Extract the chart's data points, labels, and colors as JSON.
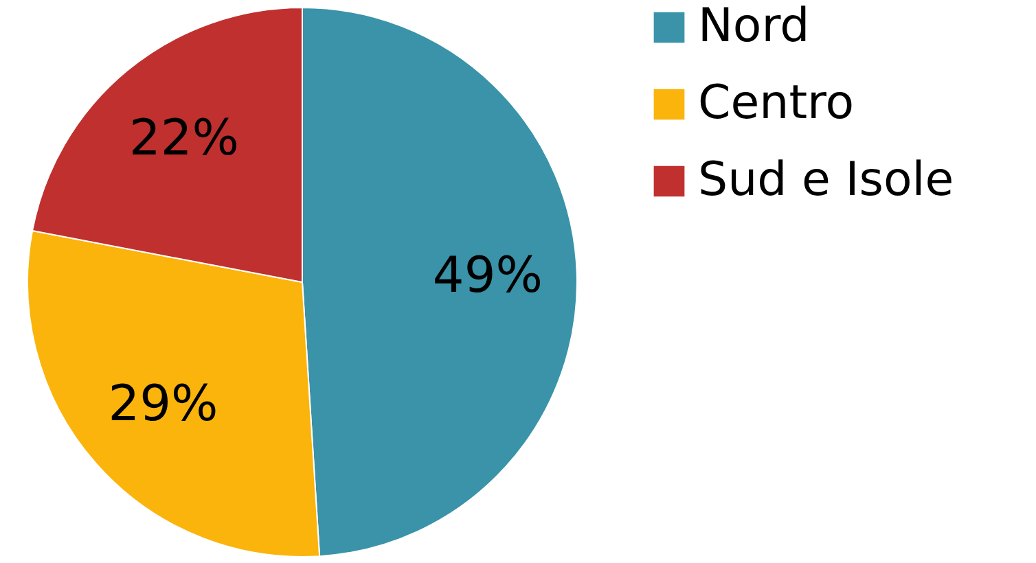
{
  "chart_data": {
    "type": "pie",
    "categories": [
      "Nord",
      "Centro",
      "Sud e Isole"
    ],
    "values": [
      49,
      29,
      22
    ],
    "colors": [
      "#3a93a8",
      "#fbb40b",
      "#c0302f"
    ],
    "value_labels": [
      "49%",
      "29%",
      "22%"
    ],
    "legend": "right"
  }
}
